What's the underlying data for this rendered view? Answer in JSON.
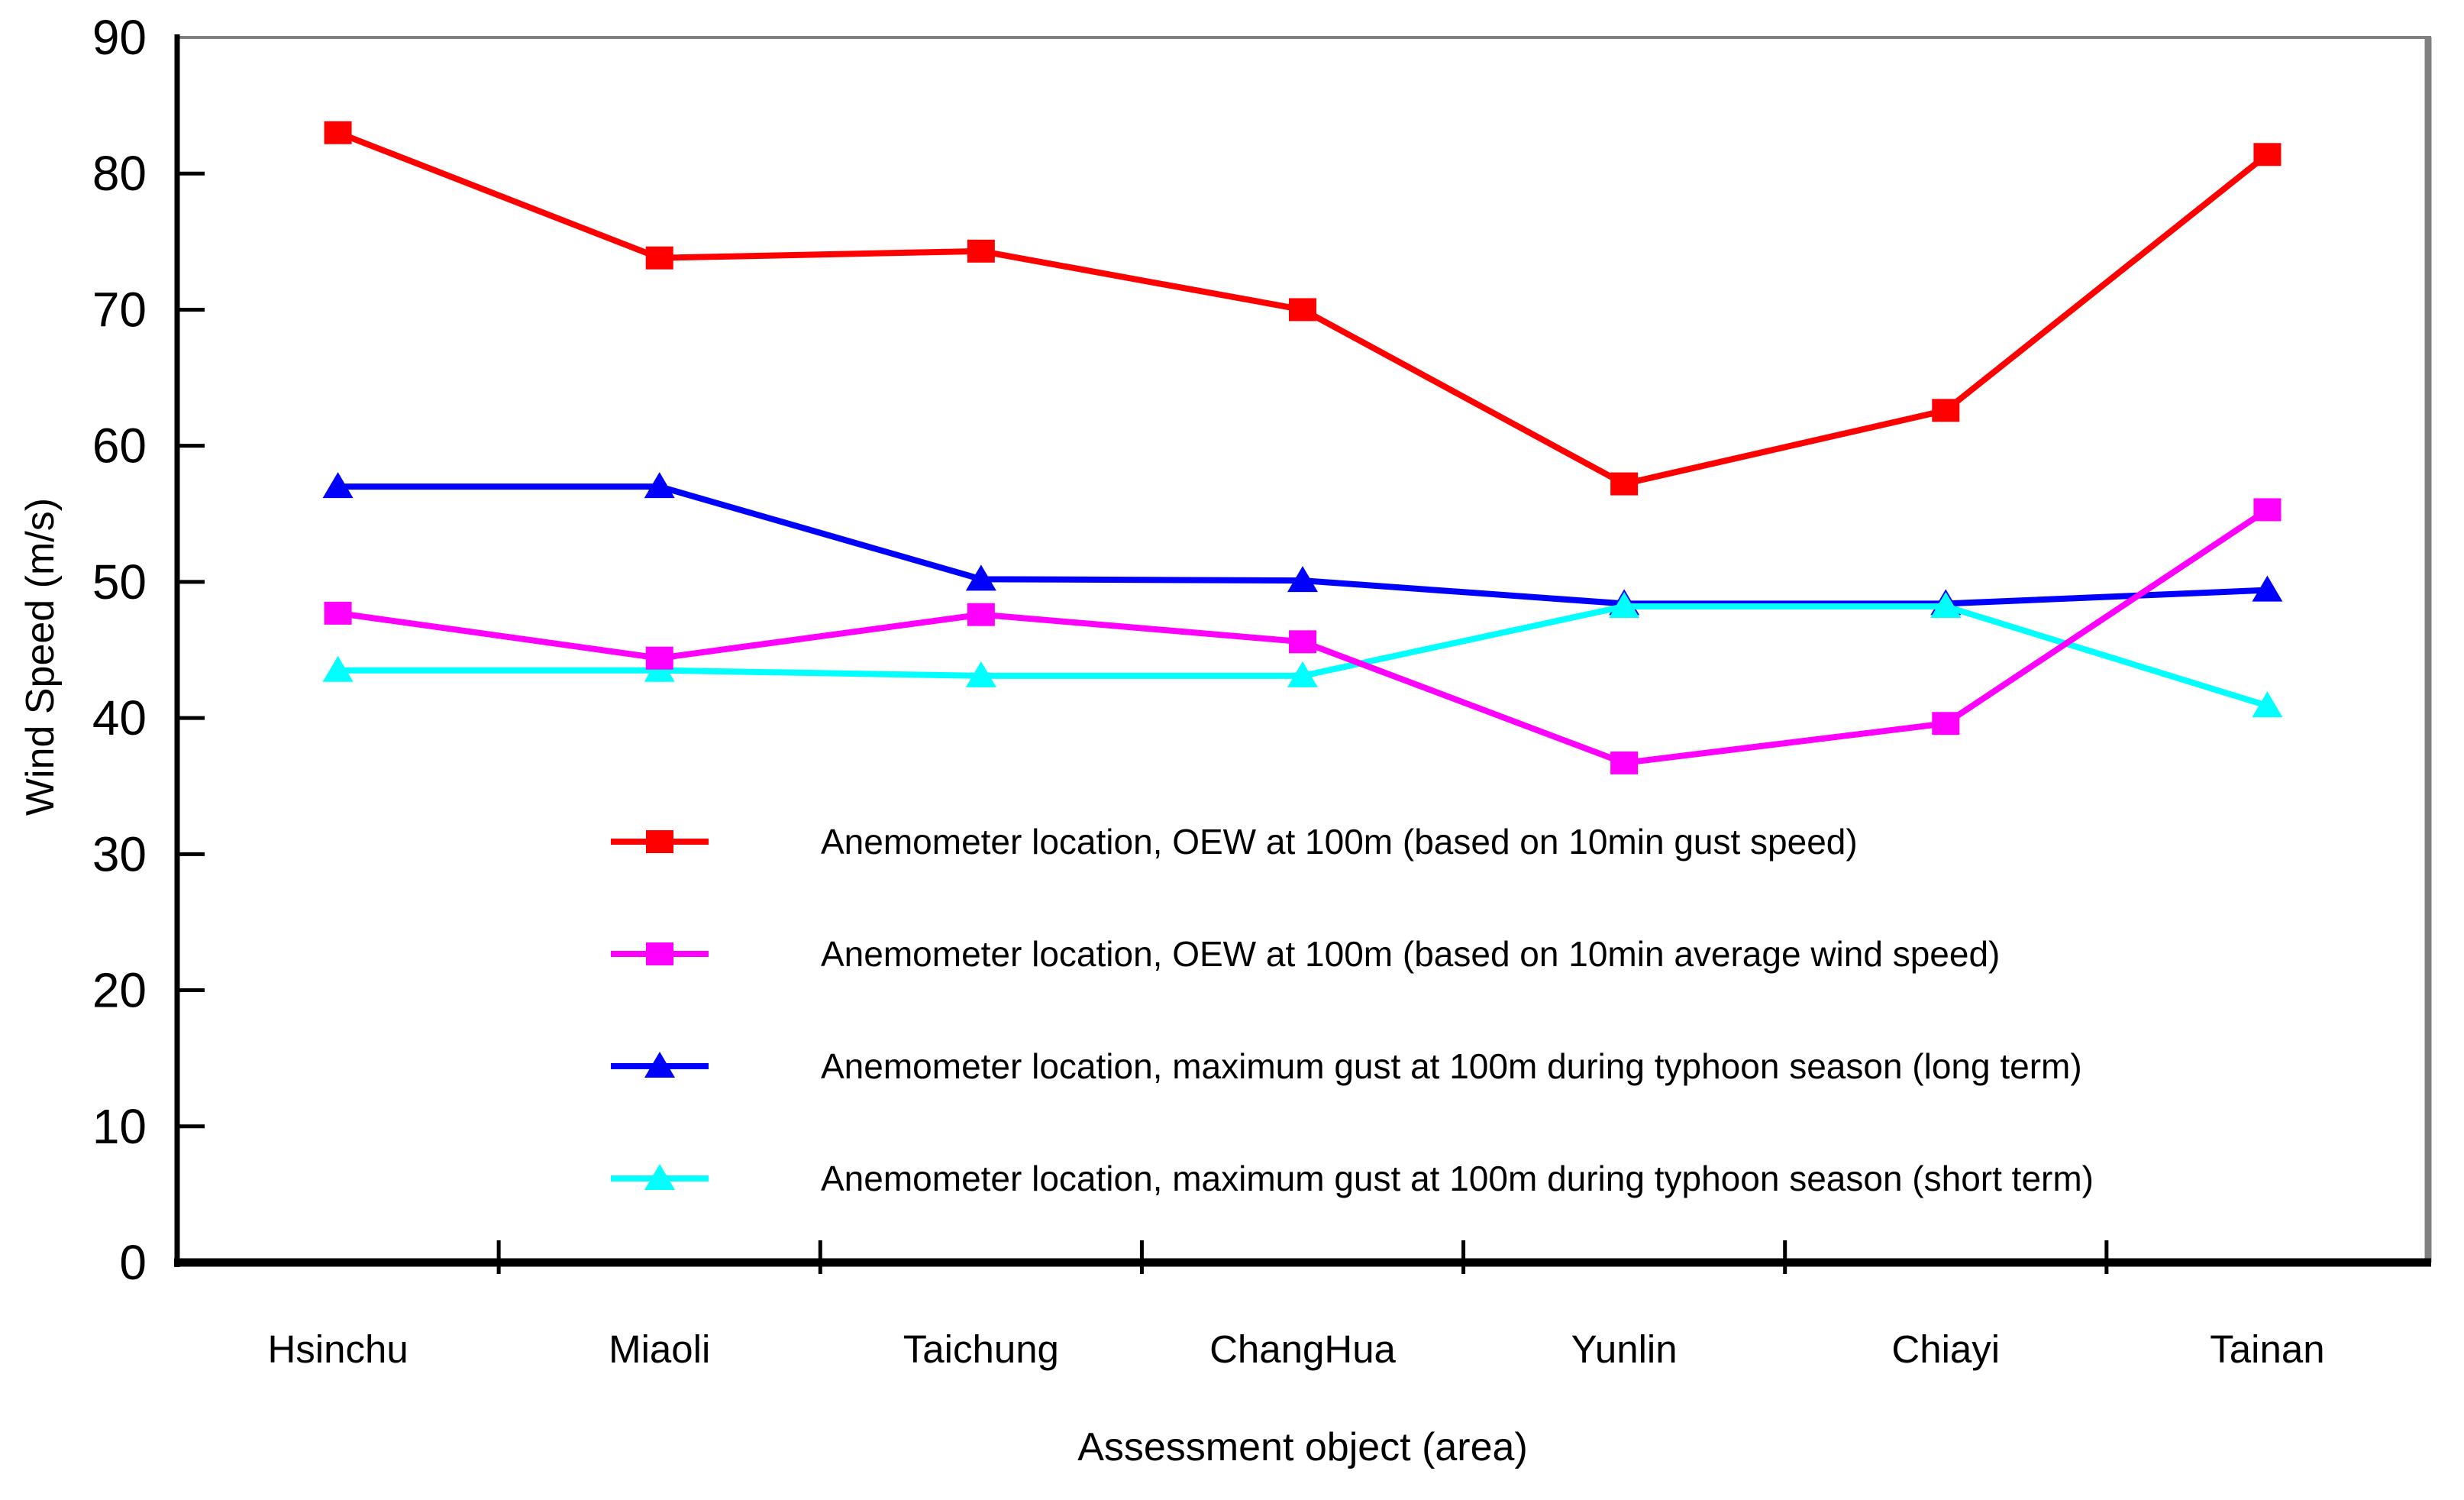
{
  "chart_data": {
    "type": "line",
    "title": "",
    "xlabel": "Assessment object (area)",
    "ylabel": "Wind Speed (m/s)",
    "ylim": [
      0,
      90
    ],
    "yticks": [
      0,
      10,
      20,
      30,
      40,
      50,
      60,
      70,
      80,
      90
    ],
    "grid": false,
    "legend_position": "inside-bottom-center",
    "categories": [
      "Hsinchu",
      "Miaoli",
      "Taichung",
      "ChangHua",
      "Yunlin",
      "Chiayi",
      "Tainan"
    ],
    "series": [
      {
        "name": "Anemometer location, OEW at 100m  (based on 10min gust speed)",
        "color": "#FF0000",
        "marker": "square",
        "values": [
          83.0,
          73.8,
          74.3,
          70.0,
          57.2,
          62.6,
          81.4
        ]
      },
      {
        "name": "Anemometer location, OEW at 100m  (based on 10min average wind speed)",
        "color": "#FF00FF",
        "marker": "square",
        "values": [
          47.7,
          44.4,
          47.6,
          45.6,
          36.7,
          39.6,
          55.3
        ]
      },
      {
        "name": "Anemometer location, maximum gust at 100m  during typhoon season (long term)",
        "color": "#0000FF",
        "marker": "triangle",
        "values": [
          57.0,
          57.0,
          50.2,
          50.1,
          48.4,
          48.4,
          49.4
        ]
      },
      {
        "name": "Anemometer location, maximum gust at 100m  during typhoon season (short term)",
        "color": "#00FFFF",
        "marker": "triangle",
        "values": [
          43.5,
          43.5,
          43.1,
          43.1,
          48.2,
          48.2,
          40.9
        ]
      }
    ],
    "draw_order": [
      0,
      2,
      3,
      1
    ],
    "colors": {
      "axis": "#000000",
      "frame": "#808080",
      "text": "#000000",
      "background": "#ffffff"
    }
  }
}
